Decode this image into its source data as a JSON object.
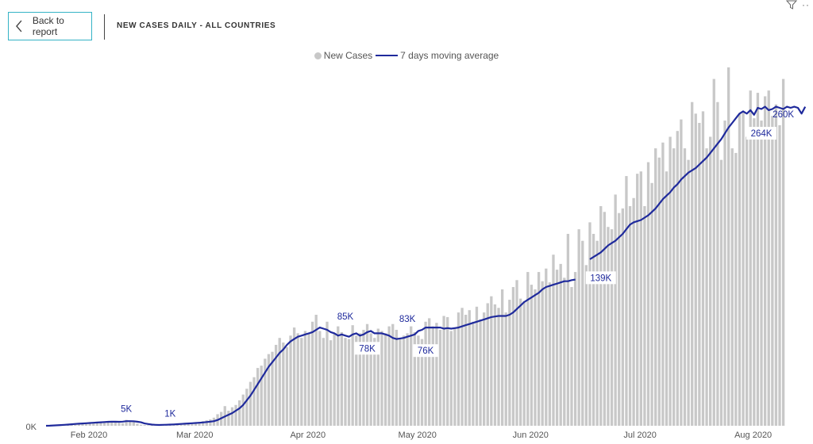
{
  "header": {
    "back_label": "Back to report",
    "title": "NEW CASES DAILY - ALL COUNTRIES"
  },
  "icons": {
    "back": "chevron-left-icon",
    "filter": "filter-icon",
    "more": "more-options-icon"
  },
  "colors": {
    "bars": "#c8c8c8",
    "line": "#1f2a9c",
    "accent": "#34b3c6"
  },
  "legend": {
    "bars_label": "New Cases",
    "line_label": "7 days moving average"
  },
  "chart_data": {
    "type": "bar",
    "title": "NEW CASES DAILY - ALL COUNTRIES",
    "x_axis": {
      "type": "date",
      "start": "2020-01-22",
      "end": "2020-08-15",
      "ticks": [
        "Feb 2020",
        "Mar 2020",
        "Apr 2020",
        "May 2020",
        "Jun 2020",
        "Jul 2020",
        "Aug 2020"
      ]
    },
    "ylim": [
      0,
      310000
    ],
    "y_tick_labels": [
      "0K"
    ],
    "grid": false,
    "legend_position": "top-center",
    "series": [
      {
        "name": "New Cases",
        "type": "bar",
        "values": [
          0,
          200,
          300,
          500,
          700,
          900,
          1200,
          1500,
          1800,
          2000,
          2200,
          2500,
          2700,
          3000,
          3200,
          3500,
          3800,
          3700,
          3600,
          3500,
          2500,
          2200,
          5100,
          4000,
          3500,
          1800,
          1000,
          600,
          500,
          600,
          700,
          900,
          1000,
          1300,
          1600,
          1800,
          2000,
          2200,
          1900,
          2400,
          2500,
          3000,
          3300,
          4000,
          4700,
          5500,
          7000,
          10000,
          12000,
          17000,
          13000,
          16000,
          18000,
          22000,
          27000,
          32000,
          38000,
          42000,
          50000,
          52000,
          58000,
          62000,
          64000,
          70000,
          76000,
          72000,
          68000,
          78000,
          85000,
          80000,
          76000,
          82000,
          80000,
          90000,
          96000,
          82000,
          76000,
          90000,
          74000,
          80000,
          86000,
          81000,
          76000,
          75000,
          87000,
          78000,
          80000,
          83000,
          88000,
          80000,
          76000,
          84000,
          82000,
          80000,
          86000,
          88000,
          83000,
          75000,
          78000,
          80000,
          86000,
          81000,
          78000,
          75000,
          90000,
          93000,
          86000,
          89000,
          83000,
          95000,
          94000,
          82000,
          85000,
          98000,
          102000,
          96000,
          100000,
          90000,
          103000,
          92000,
          98000,
          106000,
          112000,
          105000,
          102000,
          118000,
          98000,
          109000,
          120000,
          126000,
          110000,
          108000,
          133000,
          122000,
          118000,
          133000,
          125000,
          136000,
          124000,
          148000,
          135000,
          140000,
          128000,
          166000,
          120000,
          133000,
          170000,
          160000,
          139000,
          176000,
          166000,
          160000,
          190000,
          185000,
          172000,
          170000,
          200000,
          184000,
          188000,
          216000,
          190000,
          197000,
          218000,
          220000,
          190000,
          228000,
          210000,
          240000,
          232000,
          245000,
          220000,
          250000,
          240000,
          255000,
          265000,
          240000,
          230000,
          280000,
          270000,
          262000,
          272000,
          240000,
          250000,
          300000,
          280000,
          230000,
          264000,
          310000,
          240000,
          236000,
          270000,
          272000,
          250000,
          290000,
          266000,
          288000,
          264000,
          285000,
          290000,
          268000,
          278000,
          260000,
          300000
        ]
      },
      {
        "name": "7 days moving average",
        "type": "line",
        "values": [
          0,
          100,
          250,
          400,
          600,
          800,
          1000,
          1300,
          1600,
          1800,
          2000,
          2200,
          2400,
          2600,
          2800,
          3000,
          3200,
          3400,
          3500,
          3500,
          3400,
          3600,
          4000,
          4000,
          3900,
          3500,
          3000,
          2000,
          1500,
          1000,
          800,
          700,
          800,
          900,
          1000,
          1200,
          1400,
          1600,
          1800,
          2000,
          2200,
          2400,
          2600,
          2900,
          3200,
          3600,
          4000,
          5000,
          6500,
          8000,
          9500,
          11000,
          13000,
          15000,
          18000,
          22000,
          26000,
          31000,
          36000,
          41000,
          46000,
          51000,
          55000,
          59000,
          63000,
          66000,
          70000,
          73000,
          75000,
          77000,
          78000,
          79000,
          80000,
          81000,
          83000,
          85000,
          84000,
          83000,
          81000,
          80000,
          78000,
          79000,
          78000,
          77000,
          79000,
          80000,
          78000,
          79000,
          81000,
          82000,
          80000,
          80000,
          80000,
          79000,
          78000,
          76000,
          75000,
          75500,
          76000,
          77000,
          78000,
          79000,
          82000,
          83000,
          85000,
          85000,
          85000,
          85000,
          85000,
          84000,
          84500,
          84000,
          84500,
          85000,
          86000,
          87000,
          88000,
          89000,
          90000,
          91000,
          92000,
          93000,
          94000,
          94500,
          95000,
          95000,
          95000,
          96000,
          98000,
          101000,
          104000,
          107000,
          109000,
          111000,
          113000,
          115000,
          118000,
          120000,
          121000,
          122000,
          123000,
          124000,
          125000,
          125000,
          126000,
          126500,
          139000,
          139000,
          142000,
          144000,
          146000,
          148000,
          150000,
          153000,
          156000,
          158000,
          160000,
          163000,
          166000,
          170000,
          174000,
          176000,
          177000,
          178000,
          180000,
          182000,
          185000,
          188000,
          192000,
          196000,
          199000,
          202000,
          206000,
          209000,
          213000,
          216000,
          219000,
          221000,
          223000,
          226000,
          229000,
          232000,
          236000,
          240000,
          244000,
          248000,
          253000,
          258000,
          262000,
          266000,
          270000,
          272000,
          270000,
          273000,
          269000,
          275000,
          274000,
          276000,
          273000,
          274000,
          276000,
          275000,
          274000,
          276000,
          275000,
          276000,
          275000,
          270000,
          276000
        ],
        "gaps": [
          {
            "from": "2020-06-15",
            "to": "2020-06-19"
          },
          {
            "from": "2020-07-31",
            "to": "2020-08-01"
          },
          {
            "from": "2020-08-05",
            "to": "2020-08-06"
          },
          {
            "from": "2020-08-08",
            "to": "2020-08-09"
          }
        ]
      }
    ],
    "data_labels": [
      {
        "date": "2020-02-13",
        "value": 5000,
        "text": "5K",
        "boxed": false
      },
      {
        "date": "2020-02-25",
        "value": 1000,
        "text": "1K",
        "boxed": false
      },
      {
        "date": "2020-04-13",
        "value": 85000,
        "text": "85K",
        "boxed": false
      },
      {
        "date": "2020-04-19",
        "value": 78000,
        "text": "78K",
        "boxed": true
      },
      {
        "date": "2020-04-30",
        "value": 83000,
        "text": "83K",
        "boxed": false
      },
      {
        "date": "2020-05-05",
        "value": 76000,
        "text": "76K",
        "boxed": true
      },
      {
        "date": "2020-06-22",
        "value": 139000,
        "text": "139K",
        "boxed": true
      },
      {
        "date": "2020-08-05",
        "value": 264000,
        "text": "264K",
        "boxed": true
      },
      {
        "date": "2020-08-11",
        "value": 260000,
        "text": "260K",
        "boxed": false
      }
    ]
  }
}
